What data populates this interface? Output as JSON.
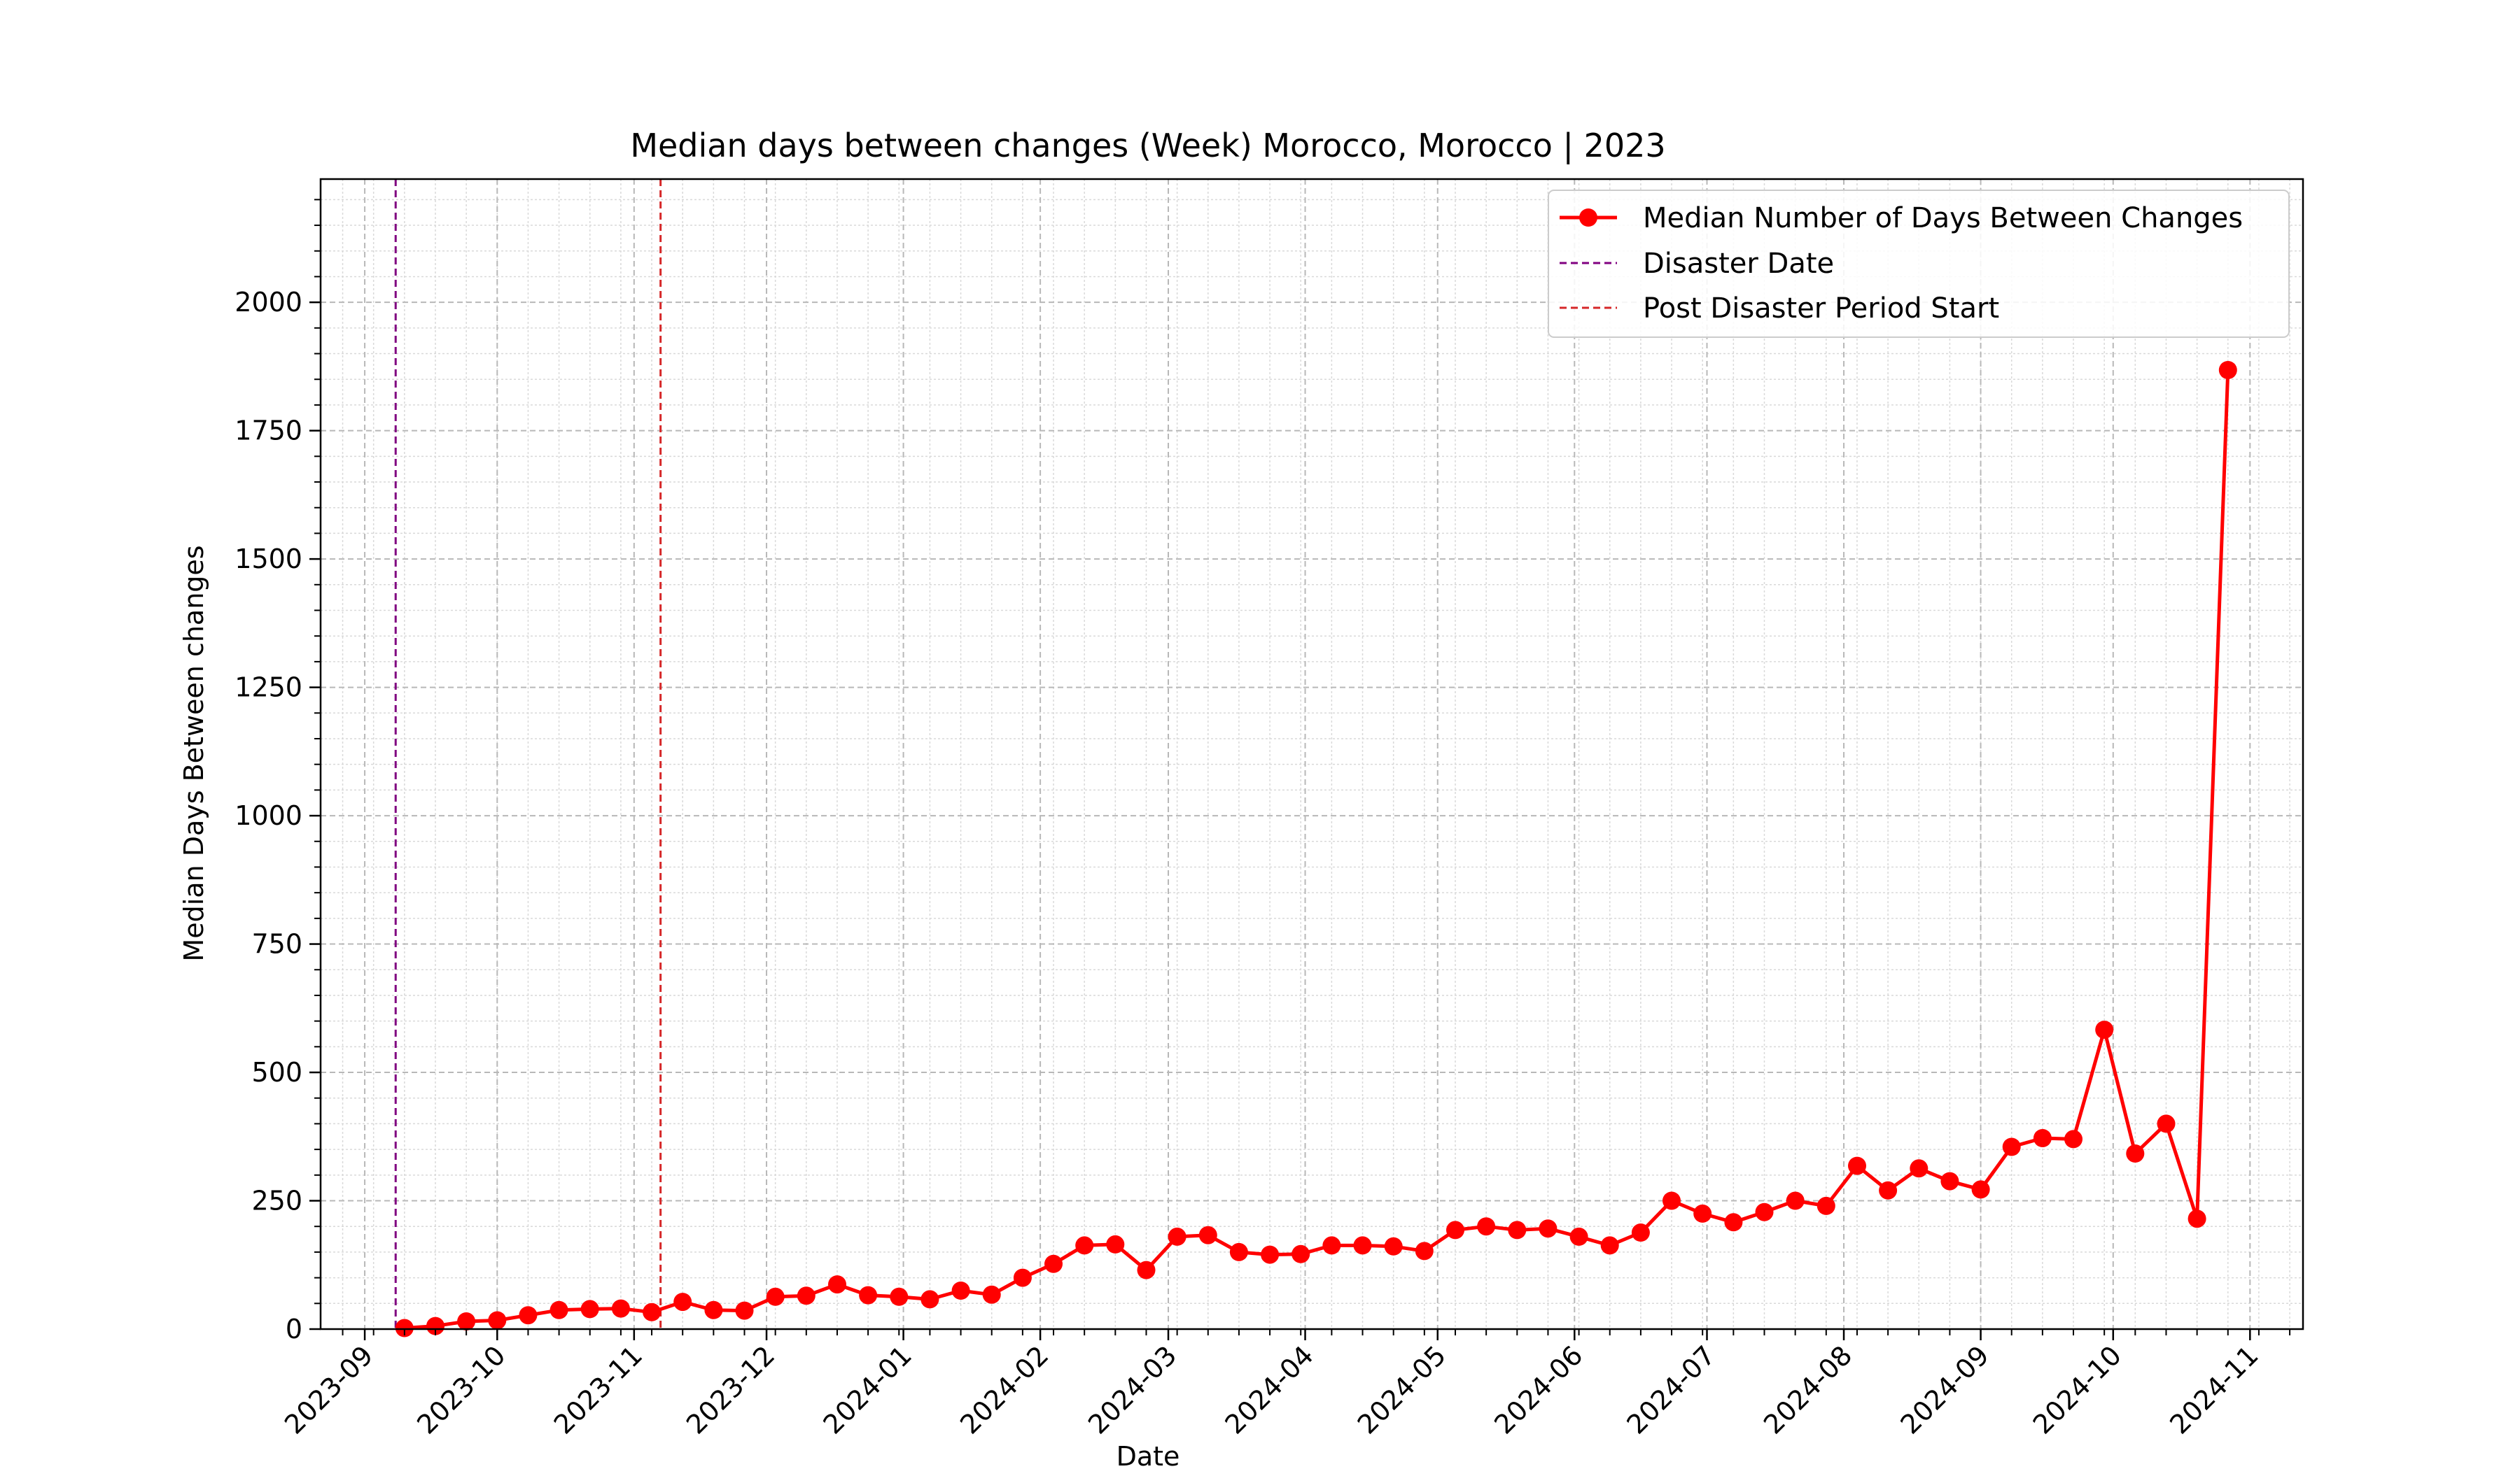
{
  "chart_data": {
    "type": "line",
    "title": "Median days between changes (Week) Morocco, Morocco | 2023",
    "xlabel": "Date",
    "ylabel": "Median Days Between changes",
    "x_tick_labels": [
      "2023-09",
      "2023-10",
      "2023-11",
      "2023-12",
      "2024-01",
      "2024-02",
      "2024-03",
      "2024-04",
      "2024-05",
      "2024-06",
      "2024-07",
      "2024-08",
      "2024-09",
      "2024-10",
      "2024-11"
    ],
    "x_tick_dates": [
      "2023-09-01",
      "2023-10-01",
      "2023-11-01",
      "2023-12-01",
      "2024-01-01",
      "2024-02-01",
      "2024-03-01",
      "2024-04-01",
      "2024-05-01",
      "2024-06-01",
      "2024-07-01",
      "2024-08-01",
      "2024-09-01",
      "2024-10-01",
      "2024-11-01"
    ],
    "xlim": [
      "2023-08-22",
      "2024-11-13"
    ],
    "y_ticks": [
      0,
      250,
      500,
      750,
      1000,
      1250,
      1500,
      1750,
      2000
    ],
    "y_tick_labels": [
      "0",
      "250",
      "500",
      "750",
      "1000",
      "1250",
      "1500",
      "1750",
      "2000"
    ],
    "ylim": [
      0,
      2240
    ],
    "grid": true,
    "legend_position": "top-right",
    "series": [
      {
        "name": "Median Number of Days Between Changes",
        "color": "#ff0000",
        "marker": "circle",
        "x": [
          "2023-09-10",
          "2023-09-17",
          "2023-09-24",
          "2023-10-01",
          "2023-10-08",
          "2023-10-15",
          "2023-10-22",
          "2023-10-29",
          "2023-11-05",
          "2023-11-12",
          "2023-11-19",
          "2023-11-26",
          "2023-12-03",
          "2023-12-10",
          "2023-12-17",
          "2023-12-24",
          "2023-12-31",
          "2024-01-07",
          "2024-01-14",
          "2024-01-21",
          "2024-01-28",
          "2024-02-04",
          "2024-02-11",
          "2024-02-18",
          "2024-02-25",
          "2024-03-03",
          "2024-03-10",
          "2024-03-17",
          "2024-03-24",
          "2024-03-31",
          "2024-04-07",
          "2024-04-14",
          "2024-04-21",
          "2024-04-28",
          "2024-05-05",
          "2024-05-12",
          "2024-05-19",
          "2024-05-26",
          "2024-06-02",
          "2024-06-09",
          "2024-06-16",
          "2024-06-23",
          "2024-06-30",
          "2024-07-07",
          "2024-07-14",
          "2024-07-21",
          "2024-07-28",
          "2024-08-04",
          "2024-08-11",
          "2024-08-18",
          "2024-08-25",
          "2024-09-01",
          "2024-09-08",
          "2024-09-15",
          "2024-09-22",
          "2024-09-29",
          "2024-10-06",
          "2024-10-13",
          "2024-10-20",
          "2024-10-27"
        ],
        "values": [
          2,
          6,
          15,
          17,
          27,
          37,
          39,
          40,
          33,
          53,
          37,
          36,
          63,
          65,
          87,
          66,
          63,
          58,
          75,
          67,
          100,
          127,
          163,
          165,
          115,
          180,
          183,
          150,
          145,
          146,
          163,
          163,
          161,
          152,
          193,
          200,
          193,
          196,
          180,
          163,
          188,
          250,
          225,
          208,
          228,
          250,
          240,
          318,
          270,
          313,
          288,
          272,
          355,
          372,
          370,
          583,
          342,
          400,
          215,
          1868
        ]
      }
    ],
    "vlines": [
      {
        "name": "Disaster Date",
        "date": "2023-09-08",
        "color": "#800080",
        "style": "dashed"
      },
      {
        "name": "Post Disaster Period Start",
        "date": "2023-11-07",
        "color": "#d62728",
        "style": "dashed"
      }
    ]
  }
}
